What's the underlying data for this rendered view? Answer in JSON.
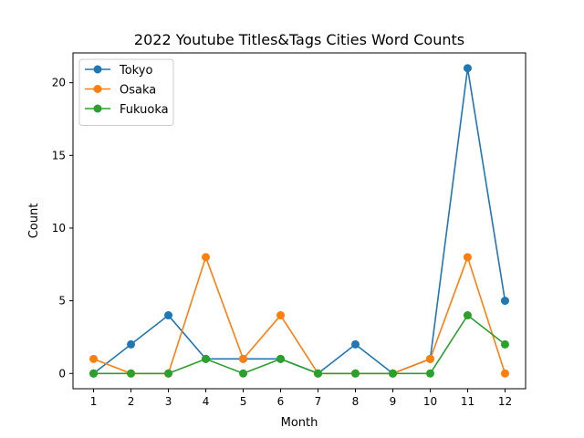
{
  "chart_data": {
    "type": "line",
    "title": "2022 Youtube Titles&Tags Cities Word Counts",
    "xlabel": "Month",
    "ylabel": "Count",
    "x": [
      1,
      2,
      3,
      4,
      5,
      6,
      7,
      8,
      9,
      10,
      11,
      12
    ],
    "xticks": [
      "1",
      "2",
      "3",
      "4",
      "5",
      "6",
      "7",
      "8",
      "9",
      "10",
      "11",
      "12"
    ],
    "yticks": [
      "0",
      "5",
      "10",
      "15",
      "20"
    ],
    "ylim": [
      -1.05,
      22.05
    ],
    "xlim": [
      0.45,
      12.55
    ],
    "grid": false,
    "legend_position": "top-left",
    "series": [
      {
        "name": "Tokyo",
        "color": "#1f77b4",
        "values": [
          0,
          2,
          4,
          1,
          1,
          1,
          0,
          2,
          0,
          1,
          21,
          5
        ]
      },
      {
        "name": "Osaka",
        "color": "#ff7f0e",
        "values": [
          1,
          0,
          0,
          8,
          1,
          4,
          0,
          0,
          0,
          1,
          8,
          0
        ]
      },
      {
        "name": "Fukuoka",
        "color": "#2ca02c",
        "values": [
          0,
          0,
          0,
          1,
          0,
          1,
          0,
          0,
          0,
          0,
          4,
          2
        ]
      }
    ]
  }
}
